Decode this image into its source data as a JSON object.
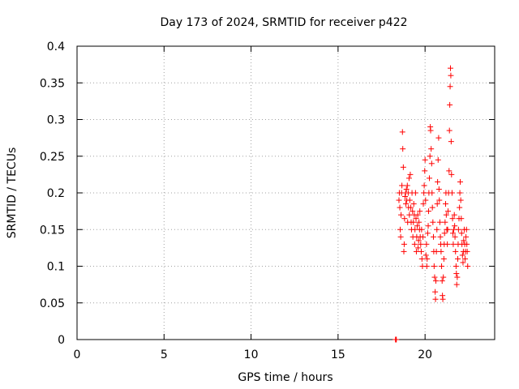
{
  "chart_data": {
    "type": "scatter",
    "title": "Day 173 of 2024, SRMTID for receiver p422",
    "xlabel": "GPS time / hours",
    "ylabel": "SRMTID / TECUs",
    "xlim": [
      0,
      24
    ],
    "ylim": [
      0,
      0.4
    ],
    "x_ticks": [
      0,
      5,
      10,
      15,
      20
    ],
    "x_tick_labels": [
      "0",
      "5",
      "10",
      "15",
      "20"
    ],
    "y_ticks": [
      0,
      0.05,
      0.1,
      0.15,
      0.2,
      0.25,
      0.3,
      0.35,
      0.4
    ],
    "y_tick_labels": [
      "0",
      "0.05",
      "0.1",
      "0.15",
      "0.2",
      "0.25",
      "0.3",
      "0.35",
      "0.4"
    ],
    "grid": true,
    "marker": "+",
    "color": "#ff0000",
    "series": [
      {
        "name": "SRMTID",
        "points": [
          [
            18.3,
            0.0
          ],
          [
            18.32,
            0.0
          ],
          [
            18.35,
            0.0
          ],
          [
            18.5,
            0.19
          ],
          [
            18.52,
            0.2
          ],
          [
            18.55,
            0.18
          ],
          [
            18.57,
            0.15
          ],
          [
            18.6,
            0.14
          ],
          [
            18.62,
            0.17
          ],
          [
            18.65,
            0.2
          ],
          [
            18.67,
            0.21
          ],
          [
            18.7,
            0.283
          ],
          [
            18.72,
            0.26
          ],
          [
            18.75,
            0.235
          ],
          [
            18.78,
            0.12
          ],
          [
            18.8,
            0.13
          ],
          [
            18.82,
            0.165
          ],
          [
            18.85,
            0.195
          ],
          [
            18.88,
            0.2
          ],
          [
            18.9,
            0.185
          ],
          [
            18.93,
            0.205
          ],
          [
            18.95,
            0.19
          ],
          [
            18.98,
            0.21
          ],
          [
            19.0,
            0.16
          ],
          [
            19.03,
            0.2
          ],
          [
            19.05,
            0.18
          ],
          [
            19.08,
            0.22
          ],
          [
            19.1,
            0.17
          ],
          [
            19.12,
            0.19
          ],
          [
            19.15,
            0.225
          ],
          [
            19.18,
            0.18
          ],
          [
            19.2,
            0.16
          ],
          [
            19.22,
            0.15
          ],
          [
            19.25,
            0.2
          ],
          [
            19.28,
            0.175
          ],
          [
            19.3,
            0.14
          ],
          [
            19.33,
            0.16
          ],
          [
            19.35,
            0.185
          ],
          [
            19.38,
            0.17
          ],
          [
            19.4,
            0.13
          ],
          [
            19.42,
            0.15
          ],
          [
            19.45,
            0.2
          ],
          [
            19.48,
            0.165
          ],
          [
            19.5,
            0.12
          ],
          [
            19.52,
            0.14
          ],
          [
            19.55,
            0.155
          ],
          [
            19.58,
            0.17
          ],
          [
            19.6,
            0.125
          ],
          [
            19.63,
            0.135
          ],
          [
            19.65,
            0.16
          ],
          [
            19.68,
            0.15
          ],
          [
            19.7,
            0.175
          ],
          [
            19.72,
            0.14
          ],
          [
            19.75,
            0.13
          ],
          [
            19.78,
            0.12
          ],
          [
            19.8,
            0.15
          ],
          [
            19.82,
            0.11
          ],
          [
            19.85,
            0.1
          ],
          [
            19.88,
            0.14
          ],
          [
            19.9,
            0.185
          ],
          [
            19.93,
            0.2
          ],
          [
            19.95,
            0.21
          ],
          [
            19.98,
            0.23
          ],
          [
            20.0,
            0.245
          ],
          [
            20.03,
            0.19
          ],
          [
            20.05,
            0.115
          ],
          [
            20.08,
            0.13
          ],
          [
            20.1,
            0.1
          ],
          [
            20.12,
            0.11
          ],
          [
            20.15,
            0.145
          ],
          [
            20.18,
            0.155
          ],
          [
            20.2,
            0.175
          ],
          [
            20.22,
            0.2
          ],
          [
            20.25,
            0.22
          ],
          [
            20.28,
            0.25
          ],
          [
            20.3,
            0.29
          ],
          [
            20.32,
            0.285
          ],
          [
            20.35,
            0.26
          ],
          [
            20.38,
            0.24
          ],
          [
            20.4,
            0.2
          ],
          [
            20.42,
            0.18
          ],
          [
            20.45,
            0.16
          ],
          [
            20.48,
            0.14
          ],
          [
            20.5,
            0.12
          ],
          [
            20.52,
            0.1
          ],
          [
            20.55,
            0.085
          ],
          [
            20.58,
            0.065
          ],
          [
            20.6,
            0.055
          ],
          [
            20.62,
            0.08
          ],
          [
            20.65,
            0.12
          ],
          [
            20.68,
            0.15
          ],
          [
            20.7,
            0.185
          ],
          [
            20.72,
            0.215
          ],
          [
            20.75,
            0.245
          ],
          [
            20.78,
            0.275
          ],
          [
            20.8,
            0.205
          ],
          [
            20.82,
            0.19
          ],
          [
            20.85,
            0.16
          ],
          [
            20.88,
            0.14
          ],
          [
            20.9,
            0.13
          ],
          [
            20.92,
            0.12
          ],
          [
            20.95,
            0.1
          ],
          [
            20.98,
            0.08
          ],
          [
            21.0,
            0.06
          ],
          [
            21.02,
            0.055
          ],
          [
            21.05,
            0.085
          ],
          [
            21.08,
            0.11
          ],
          [
            21.1,
            0.13
          ],
          [
            21.12,
            0.145
          ],
          [
            21.15,
            0.16
          ],
          [
            21.18,
            0.185
          ],
          [
            21.2,
            0.2
          ],
          [
            21.22,
            0.17
          ],
          [
            21.25,
            0.15
          ],
          [
            21.28,
            0.13
          ],
          [
            21.3,
            0.15
          ],
          [
            21.32,
            0.175
          ],
          [
            21.35,
            0.2
          ],
          [
            21.38,
            0.23
          ],
          [
            21.4,
            0.285
          ],
          [
            21.42,
            0.32
          ],
          [
            21.44,
            0.345
          ],
          [
            21.46,
            0.37
          ],
          [
            21.48,
            0.36
          ],
          [
            21.5,
            0.27
          ],
          [
            21.52,
            0.225
          ],
          [
            21.55,
            0.2
          ],
          [
            21.58,
            0.165
          ],
          [
            21.6,
            0.145
          ],
          [
            21.62,
            0.13
          ],
          [
            21.65,
            0.15
          ],
          [
            21.68,
            0.17
          ],
          [
            21.7,
            0.155
          ],
          [
            21.72,
            0.14
          ],
          [
            21.75,
            0.12
          ],
          [
            21.78,
            0.1
          ],
          [
            21.8,
            0.09
          ],
          [
            21.82,
            0.075
          ],
          [
            21.85,
            0.085
          ],
          [
            21.88,
            0.11
          ],
          [
            21.9,
            0.13
          ],
          [
            21.92,
            0.15
          ],
          [
            21.95,
            0.165
          ],
          [
            21.98,
            0.18
          ],
          [
            22.0,
            0.2
          ],
          [
            22.02,
            0.215
          ],
          [
            22.05,
            0.19
          ],
          [
            22.08,
            0.165
          ],
          [
            22.1,
            0.145
          ],
          [
            22.12,
            0.13
          ],
          [
            22.15,
            0.115
          ],
          [
            22.18,
            0.105
          ],
          [
            22.2,
            0.12
          ],
          [
            22.22,
            0.135
          ],
          [
            22.25,
            0.15
          ],
          [
            22.28,
            0.13
          ],
          [
            22.3,
            0.11
          ],
          [
            22.32,
            0.12
          ],
          [
            22.35,
            0.14
          ],
          [
            22.38,
            0.15
          ],
          [
            22.4,
            0.13
          ],
          [
            22.42,
            0.12
          ],
          [
            22.45,
            0.1
          ]
        ]
      }
    ]
  }
}
